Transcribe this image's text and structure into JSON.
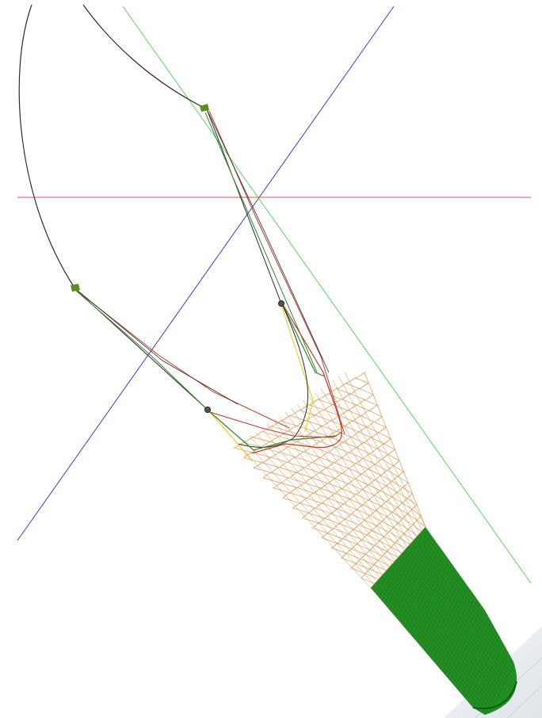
{
  "scene": {
    "background": "#ffffff",
    "colors": {
      "axis_x": "#d9534f",
      "axis_y": "#3b3bd6",
      "axis_z": "#59d959",
      "warp": "#2b2b2b",
      "headrope": "#c0392b",
      "bridle": "#2e8b2e",
      "sweep": "#e6d22e",
      "netting": "#d98a3c",
      "codend": "#1f8a1f",
      "codend_dark": "#0f5f0f",
      "door": "#5a8f1a",
      "float": "#555555",
      "ground": "#e6ebf0"
    }
  }
}
